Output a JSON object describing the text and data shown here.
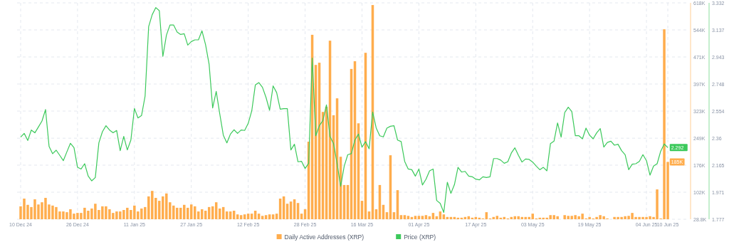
{
  "chart_data": {
    "type": "bar",
    "x": [
      "2024-12-10",
      "2024-12-11",
      "2024-12-12",
      "2024-12-13",
      "2024-12-14",
      "2024-12-15",
      "2024-12-16",
      "2024-12-17",
      "2024-12-18",
      "2024-12-19",
      "2024-12-20",
      "2024-12-21",
      "2024-12-22",
      "2024-12-23",
      "2024-12-24",
      "2024-12-25",
      "2024-12-26",
      "2024-12-27",
      "2024-12-28",
      "2024-12-29",
      "2024-12-30",
      "2024-12-31",
      "2025-01-01",
      "2025-01-02",
      "2025-01-03",
      "2025-01-04",
      "2025-01-05",
      "2025-01-06",
      "2025-01-07",
      "2025-01-08",
      "2025-01-09",
      "2025-01-10",
      "2025-01-11",
      "2025-01-12",
      "2025-01-13",
      "2025-01-14",
      "2025-01-15",
      "2025-01-16",
      "2025-01-17",
      "2025-01-18",
      "2025-01-19",
      "2025-01-20",
      "2025-01-21",
      "2025-01-22",
      "2025-01-23",
      "2025-01-24",
      "2025-01-25",
      "2025-01-26",
      "2025-01-27",
      "2025-01-28",
      "2025-01-29",
      "2025-01-30",
      "2025-01-31",
      "2025-02-01",
      "2025-02-02",
      "2025-02-03",
      "2025-02-04",
      "2025-02-05",
      "2025-02-06",
      "2025-02-07",
      "2025-02-08",
      "2025-02-09",
      "2025-02-10",
      "2025-02-11",
      "2025-02-12",
      "2025-02-13",
      "2025-02-14",
      "2025-02-15",
      "2025-02-16",
      "2025-02-17",
      "2025-02-18",
      "2025-02-19",
      "2025-02-20",
      "2025-02-21",
      "2025-02-22",
      "2025-02-23",
      "2025-02-24",
      "2025-02-25",
      "2025-02-26",
      "2025-02-27",
      "2025-02-28",
      "2025-03-01",
      "2025-03-02",
      "2025-03-03",
      "2025-03-04",
      "2025-03-05",
      "2025-03-06",
      "2025-03-07",
      "2025-03-08",
      "2025-03-09",
      "2025-03-10",
      "2025-03-11",
      "2025-03-12",
      "2025-03-13",
      "2025-03-14",
      "2025-03-15",
      "2025-03-16",
      "2025-03-17",
      "2025-03-18",
      "2025-03-19",
      "2025-03-20",
      "2025-03-21",
      "2025-03-22",
      "2025-03-23",
      "2025-03-24",
      "2025-03-25",
      "2025-03-26",
      "2025-03-27",
      "2025-03-28",
      "2025-03-29",
      "2025-03-30",
      "2025-03-31",
      "2025-04-01",
      "2025-04-02",
      "2025-04-03",
      "2025-04-04",
      "2025-04-05",
      "2025-04-06",
      "2025-04-07",
      "2025-04-08",
      "2025-04-09",
      "2025-04-10",
      "2025-04-11",
      "2025-04-12",
      "2025-04-13",
      "2025-04-14",
      "2025-04-15",
      "2025-04-16",
      "2025-04-17",
      "2025-04-18",
      "2025-04-19",
      "2025-04-20",
      "2025-04-21",
      "2025-04-22",
      "2025-04-23",
      "2025-04-24",
      "2025-04-25",
      "2025-04-26",
      "2025-04-27",
      "2025-04-28",
      "2025-04-29",
      "2025-04-30",
      "2025-05-01",
      "2025-05-02",
      "2025-05-03",
      "2025-05-04",
      "2025-05-05",
      "2025-05-06",
      "2025-05-07",
      "2025-05-08",
      "2025-05-09",
      "2025-05-10",
      "2025-05-11",
      "2025-05-12",
      "2025-05-13",
      "2025-05-14",
      "2025-05-15",
      "2025-05-16",
      "2025-05-17",
      "2025-05-18",
      "2025-05-19",
      "2025-05-20",
      "2025-05-21",
      "2025-05-22",
      "2025-05-23",
      "2025-05-24",
      "2025-05-25",
      "2025-05-26",
      "2025-05-27",
      "2025-05-28",
      "2025-05-29",
      "2025-05-30",
      "2025-05-31",
      "2025-06-01",
      "2025-06-02",
      "2025-06-03",
      "2025-06-04",
      "2025-06-05",
      "2025-06-06",
      "2025-06-07",
      "2025-06-08",
      "2025-06-09",
      "2025-06-10"
    ],
    "series": [
      {
        "name": "Daily Active Addresses (XRP)",
        "axis": "y",
        "color": "#ffad4d",
        "values": [
          64000,
          85000,
          68000,
          62000,
          83000,
          69000,
          75000,
          87000,
          69000,
          66000,
          62000,
          50000,
          50000,
          48000,
          56000,
          44000,
          46000,
          46000,
          60000,
          52000,
          58000,
          71000,
          54000,
          64000,
          64000,
          56000,
          46000,
          50000,
          50000,
          54000,
          60000,
          54000,
          66000,
          50000,
          58000,
          62000,
          91000,
          106000,
          87000,
          79000,
          91000,
          99000,
          75000,
          66000,
          60000,
          60000,
          68000,
          60000,
          69000,
          64000,
          50000,
          56000,
          52000,
          62000,
          64000,
          75000,
          58000,
          62000,
          50000,
          50000,
          52000,
          42000,
          40000,
          42000,
          44000,
          44000,
          52000,
          44000,
          38000,
          40000,
          42000,
          42000,
          44000,
          85000,
          91000,
          71000,
          77000,
          83000,
          73000,
          44000,
          56000,
          240000,
          531000,
          449000,
          455000,
          321000,
          335000,
          515000,
          312000,
          358000,
          199000,
          122000,
          122000,
          438000,
          459000,
          290000,
          79000,
          482000,
          50000,
          612000,
          56000,
          122000,
          68000,
          48000,
          203000,
          48000,
          108000,
          40000,
          40000,
          38000,
          35000,
          38000,
          38000,
          38000,
          40000,
          37000,
          46000,
          37000,
          50000,
          42000,
          35000,
          35000,
          35000,
          33000,
          33000,
          35000,
          37000,
          33000,
          35000,
          33000,
          31000,
          48000,
          31000,
          35000,
          38000,
          33000,
          35000,
          31000,
          35000,
          37000,
          37000,
          35000,
          35000,
          35000,
          44000,
          31000,
          33000,
          33000,
          33000,
          40000,
          40000,
          37000,
          null,
          40000,
          38000,
          38000,
          40000,
          37000,
          44000,
          31000,
          35000,
          31000,
          35000,
          40000,
          37000,
          31000,
          null,
          35000,
          35000,
          35000,
          37000,
          38000,
          46000,
          35000,
          35000,
          35000,
          35000,
          37000,
          35000,
          110000,
          31000,
          546000,
          185000
        ],
        "value_labels": [
          null,
          null,
          null,
          null,
          null,
          null,
          null,
          null,
          null,
          null,
          null,
          null,
          null,
          null,
          null,
          null,
          null,
          null,
          null,
          null,
          null,
          null,
          null,
          null,
          null,
          null,
          null,
          null,
          null,
          null,
          null,
          null,
          null,
          null,
          null,
          null,
          null,
          null,
          null,
          null,
          null,
          null,
          null,
          null,
          null,
          null,
          null,
          null,
          null,
          null,
          null,
          null,
          null,
          null,
          null,
          null,
          null,
          null,
          null,
          null,
          null,
          null,
          null,
          null,
          null,
          null,
          null,
          null,
          null,
          null,
          null,
          null,
          null,
          null,
          null,
          null,
          null,
          null,
          null,
          null,
          null,
          null,
          null,
          null,
          null,
          null,
          null,
          null,
          null,
          null,
          null,
          null,
          null,
          null,
          null,
          null,
          null,
          null,
          null,
          null,
          null,
          null,
          null,
          null,
          null,
          null,
          null,
          null,
          null,
          null,
          null,
          null,
          null,
          null,
          null,
          null,
          null,
          null,
          null,
          null,
          null,
          null,
          null,
          null,
          null,
          null,
          null,
          null,
          null,
          null,
          null,
          null,
          null,
          null,
          null,
          null,
          null,
          null,
          null,
          null,
          null,
          null,
          null,
          null,
          null,
          null,
          null,
          null,
          null,
          null,
          null,
          null,
          null,
          null,
          null,
          null,
          null,
          null,
          null,
          null,
          null,
          null,
          null,
          null,
          null,
          null,
          null,
          null,
          null,
          null,
          null,
          null,
          null,
          null,
          null,
          null,
          null,
          null,
          null,
          null,
          null,
          null,
          null
        ]
      },
      {
        "name": "Price (XRP)",
        "type": "line",
        "axis": "y2",
        "color": "#3cc95b",
        "values": [
          2.367,
          2.394,
          2.343,
          2.418,
          2.398,
          2.44,
          2.483,
          2.565,
          2.3,
          2.248,
          2.273,
          2.236,
          2.198,
          2.261,
          2.323,
          2.292,
          2.15,
          2.138,
          2.176,
          2.087,
          2.053,
          2.077,
          2.326,
          2.406,
          2.449,
          2.418,
          2.398,
          2.415,
          2.27,
          2.372,
          2.275,
          2.346,
          2.573,
          2.505,
          2.522,
          2.662,
          3.161,
          3.247,
          3.298,
          3.276,
          2.947,
          3.1,
          3.173,
          3.173,
          3.122,
          3.105,
          3.11,
          3.028,
          3.054,
          3.066,
          3.066,
          3.131,
          3.032,
          2.892,
          2.577,
          2.696,
          2.534,
          2.381,
          2.326,
          2.389,
          2.42,
          2.394,
          2.418,
          2.415,
          2.466,
          2.556,
          2.742,
          2.759,
          2.725,
          2.653,
          2.56,
          2.735,
          2.687,
          2.568,
          2.572,
          2.572,
          2.275,
          2.316,
          2.19,
          2.193,
          2.142,
          2.179,
          2.935,
          2.377,
          2.449,
          2.486,
          2.599,
          2.372,
          2.321,
          2.176,
          2.014,
          2.159,
          2.241,
          2.248,
          2.346,
          2.389,
          2.295,
          2.335,
          2.283,
          2.548,
          2.432,
          2.377,
          2.369,
          2.432,
          2.445,
          2.449,
          2.346,
          2.335,
          2.193,
          2.138,
          2.133,
          2.087,
          2.138,
          2.023,
          2.065,
          2.125,
          2.138,
          1.912,
          1.891,
          1.826,
          2.043,
          1.963,
          2.026,
          2.15,
          2.116,
          2.121,
          2.087,
          2.082,
          2.065,
          2.06,
          2.082,
          2.077,
          2.082,
          2.213,
          2.213,
          2.202,
          2.179,
          2.19,
          2.253,
          2.29,
          2.236,
          2.188,
          2.21,
          2.207,
          2.188,
          2.159,
          2.133,
          2.15,
          2.125,
          2.321,
          2.338,
          2.469,
          2.367,
          2.543,
          2.582,
          2.551,
          2.377,
          2.377,
          2.355,
          2.432,
          2.381,
          2.355,
          2.398,
          2.428,
          2.295,
          2.329,
          2.338,
          2.309,
          2.316,
          2.27,
          2.241,
          2.133,
          2.173,
          2.176,
          2.193,
          2.241,
          2.198,
          2.094,
          2.159,
          2.176,
          2.266,
          2.318,
          2.292
        ],
        "value_labels": [
          null,
          null,
          null,
          null,
          null,
          null,
          null,
          null,
          null,
          null,
          null,
          null,
          null,
          null,
          null,
          null,
          null,
          null,
          null,
          null,
          null,
          null,
          null,
          null,
          null,
          null,
          null,
          null,
          null,
          null,
          null,
          null,
          null,
          null,
          null,
          null,
          null,
          null,
          null,
          null,
          null,
          null,
          null,
          null,
          null,
          null,
          null,
          null,
          null,
          null,
          null,
          null,
          null,
          null,
          null,
          null,
          null,
          null,
          null,
          null,
          null,
          null,
          null,
          null,
          null,
          null,
          null,
          null,
          null,
          null,
          null,
          null,
          null,
          null,
          null,
          null,
          null,
          null,
          null,
          null,
          null,
          null,
          null,
          null,
          null,
          null,
          null,
          null,
          null,
          null,
          null,
          null,
          null,
          null,
          null,
          null,
          null,
          null,
          null,
          null,
          null,
          null,
          null,
          null,
          null,
          null,
          null,
          null,
          null,
          null,
          null,
          null,
          null,
          null,
          null,
          null,
          null,
          null,
          null,
          null,
          null,
          null,
          null,
          null,
          null,
          null,
          null,
          null,
          null,
          null,
          null,
          null,
          null,
          null,
          null,
          null,
          null,
          null,
          null,
          null,
          null,
          null,
          null,
          null,
          null,
          null,
          null,
          null,
          null,
          null,
          null,
          null,
          null,
          null,
          null,
          null,
          null,
          null,
          null,
          null,
          null,
          null,
          null,
          null,
          null,
          null,
          null,
          null,
          null,
          null,
          null,
          null,
          null,
          null,
          null,
          null,
          null,
          null,
          null,
          null,
          null,
          null,
          "2.292"
        ]
      }
    ],
    "xlim": [
      "2024-12-09",
      "2025-06-16"
    ],
    "xticks": [
      {
        "value": "2024-12-10",
        "label": "10 Dec 24"
      },
      {
        "value": "2024-12-26",
        "label": "26 Dec 24"
      },
      {
        "value": "2025-01-11",
        "label": "11 Jan 25"
      },
      {
        "value": "2025-01-27",
        "label": "27 Jan 25"
      },
      {
        "value": "2025-02-12",
        "label": "12 Feb 25"
      },
      {
        "value": "2025-02-28",
        "label": "28 Feb 25"
      },
      {
        "value": "2025-03-16",
        "label": "16 Mar 25"
      },
      {
        "value": "2025-04-01",
        "label": "01 Apr 25"
      },
      {
        "value": "2025-04-17",
        "label": "17 Apr 25"
      },
      {
        "value": "2025-05-03",
        "label": "03 May 25"
      },
      {
        "value": "2025-05-19",
        "label": "19 May 25"
      },
      {
        "value": "2025-06-04",
        "label": "04 Jun 25"
      },
      {
        "value": "2025-06-10",
        "label": "10 Jun 25"
      }
    ],
    "ylim": [
      28800,
      618000
    ],
    "yticks": [
      {
        "value": 28800,
        "label": "28.8K"
      },
      {
        "value": 102450,
        "label": "102K"
      },
      {
        "value": 176100,
        "label": "176K"
      },
      {
        "value": 249450,
        "label": "249K"
      },
      {
        "value": 323400,
        "label": "323K"
      },
      {
        "value": 397050,
        "label": "397K"
      },
      {
        "value": 470700,
        "label": "471K"
      },
      {
        "value": 544350,
        "label": "544K"
      },
      {
        "value": 618000,
        "label": "618K"
      }
    ],
    "y2lim": [
      1.777,
      3.332
    ],
    "y2ticks": [
      1.777,
      1.971,
      2.165,
      2.36,
      2.554,
      2.748,
      2.943,
      3.137,
      3.332
    ],
    "annotations": [
      {
        "text": "185K",
        "x": "2025-06-10",
        "y": 185000
      }
    ],
    "grid": true,
    "legend": "bottom"
  }
}
